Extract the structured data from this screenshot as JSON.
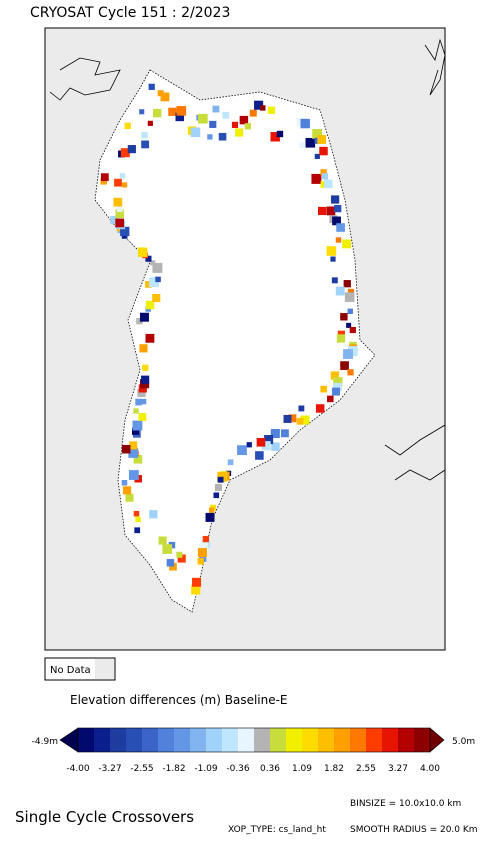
{
  "title": "CRYOSAT Cycle 151 : 2/2023",
  "legend": {
    "no_data": "No Data"
  },
  "colorbar": {
    "title": "Elevation differences (m) Baseline-E",
    "min_label": "-4.9m",
    "max_label": "5.0m",
    "ticks": [
      "-4.00",
      "-3.27",
      "-2.55",
      "-1.82",
      "-1.09",
      "-0.36",
      "0.36",
      "1.09",
      "1.82",
      "2.55",
      "3.27",
      "4.00"
    ],
    "under_color": "#000050",
    "over_color": "#6e0000",
    "colors": [
      "#000a6e",
      "#0a1e8c",
      "#1e3ca0",
      "#2850b4",
      "#3c64c8",
      "#5082dc",
      "#6496e6",
      "#82b4f0",
      "#a0d2fa",
      "#bee6ff",
      "#e6f5ff",
      "#b4b4b4",
      "#c8dc3c",
      "#f0f000",
      "#ffdc00",
      "#ffbe00",
      "#ffa000",
      "#ff7800",
      "#ff3c00",
      "#e61400",
      "#b40000",
      "#8c0000"
    ]
  },
  "footer": {
    "heading": "Single Cycle Crossovers",
    "binsize": "BINSIZE = 10.0x10.0 km",
    "xop_type": "XOP_TYPE: cs_land_ht",
    "smooth_radius": "SMOOTH RADIUS =  20.0 Km"
  }
}
